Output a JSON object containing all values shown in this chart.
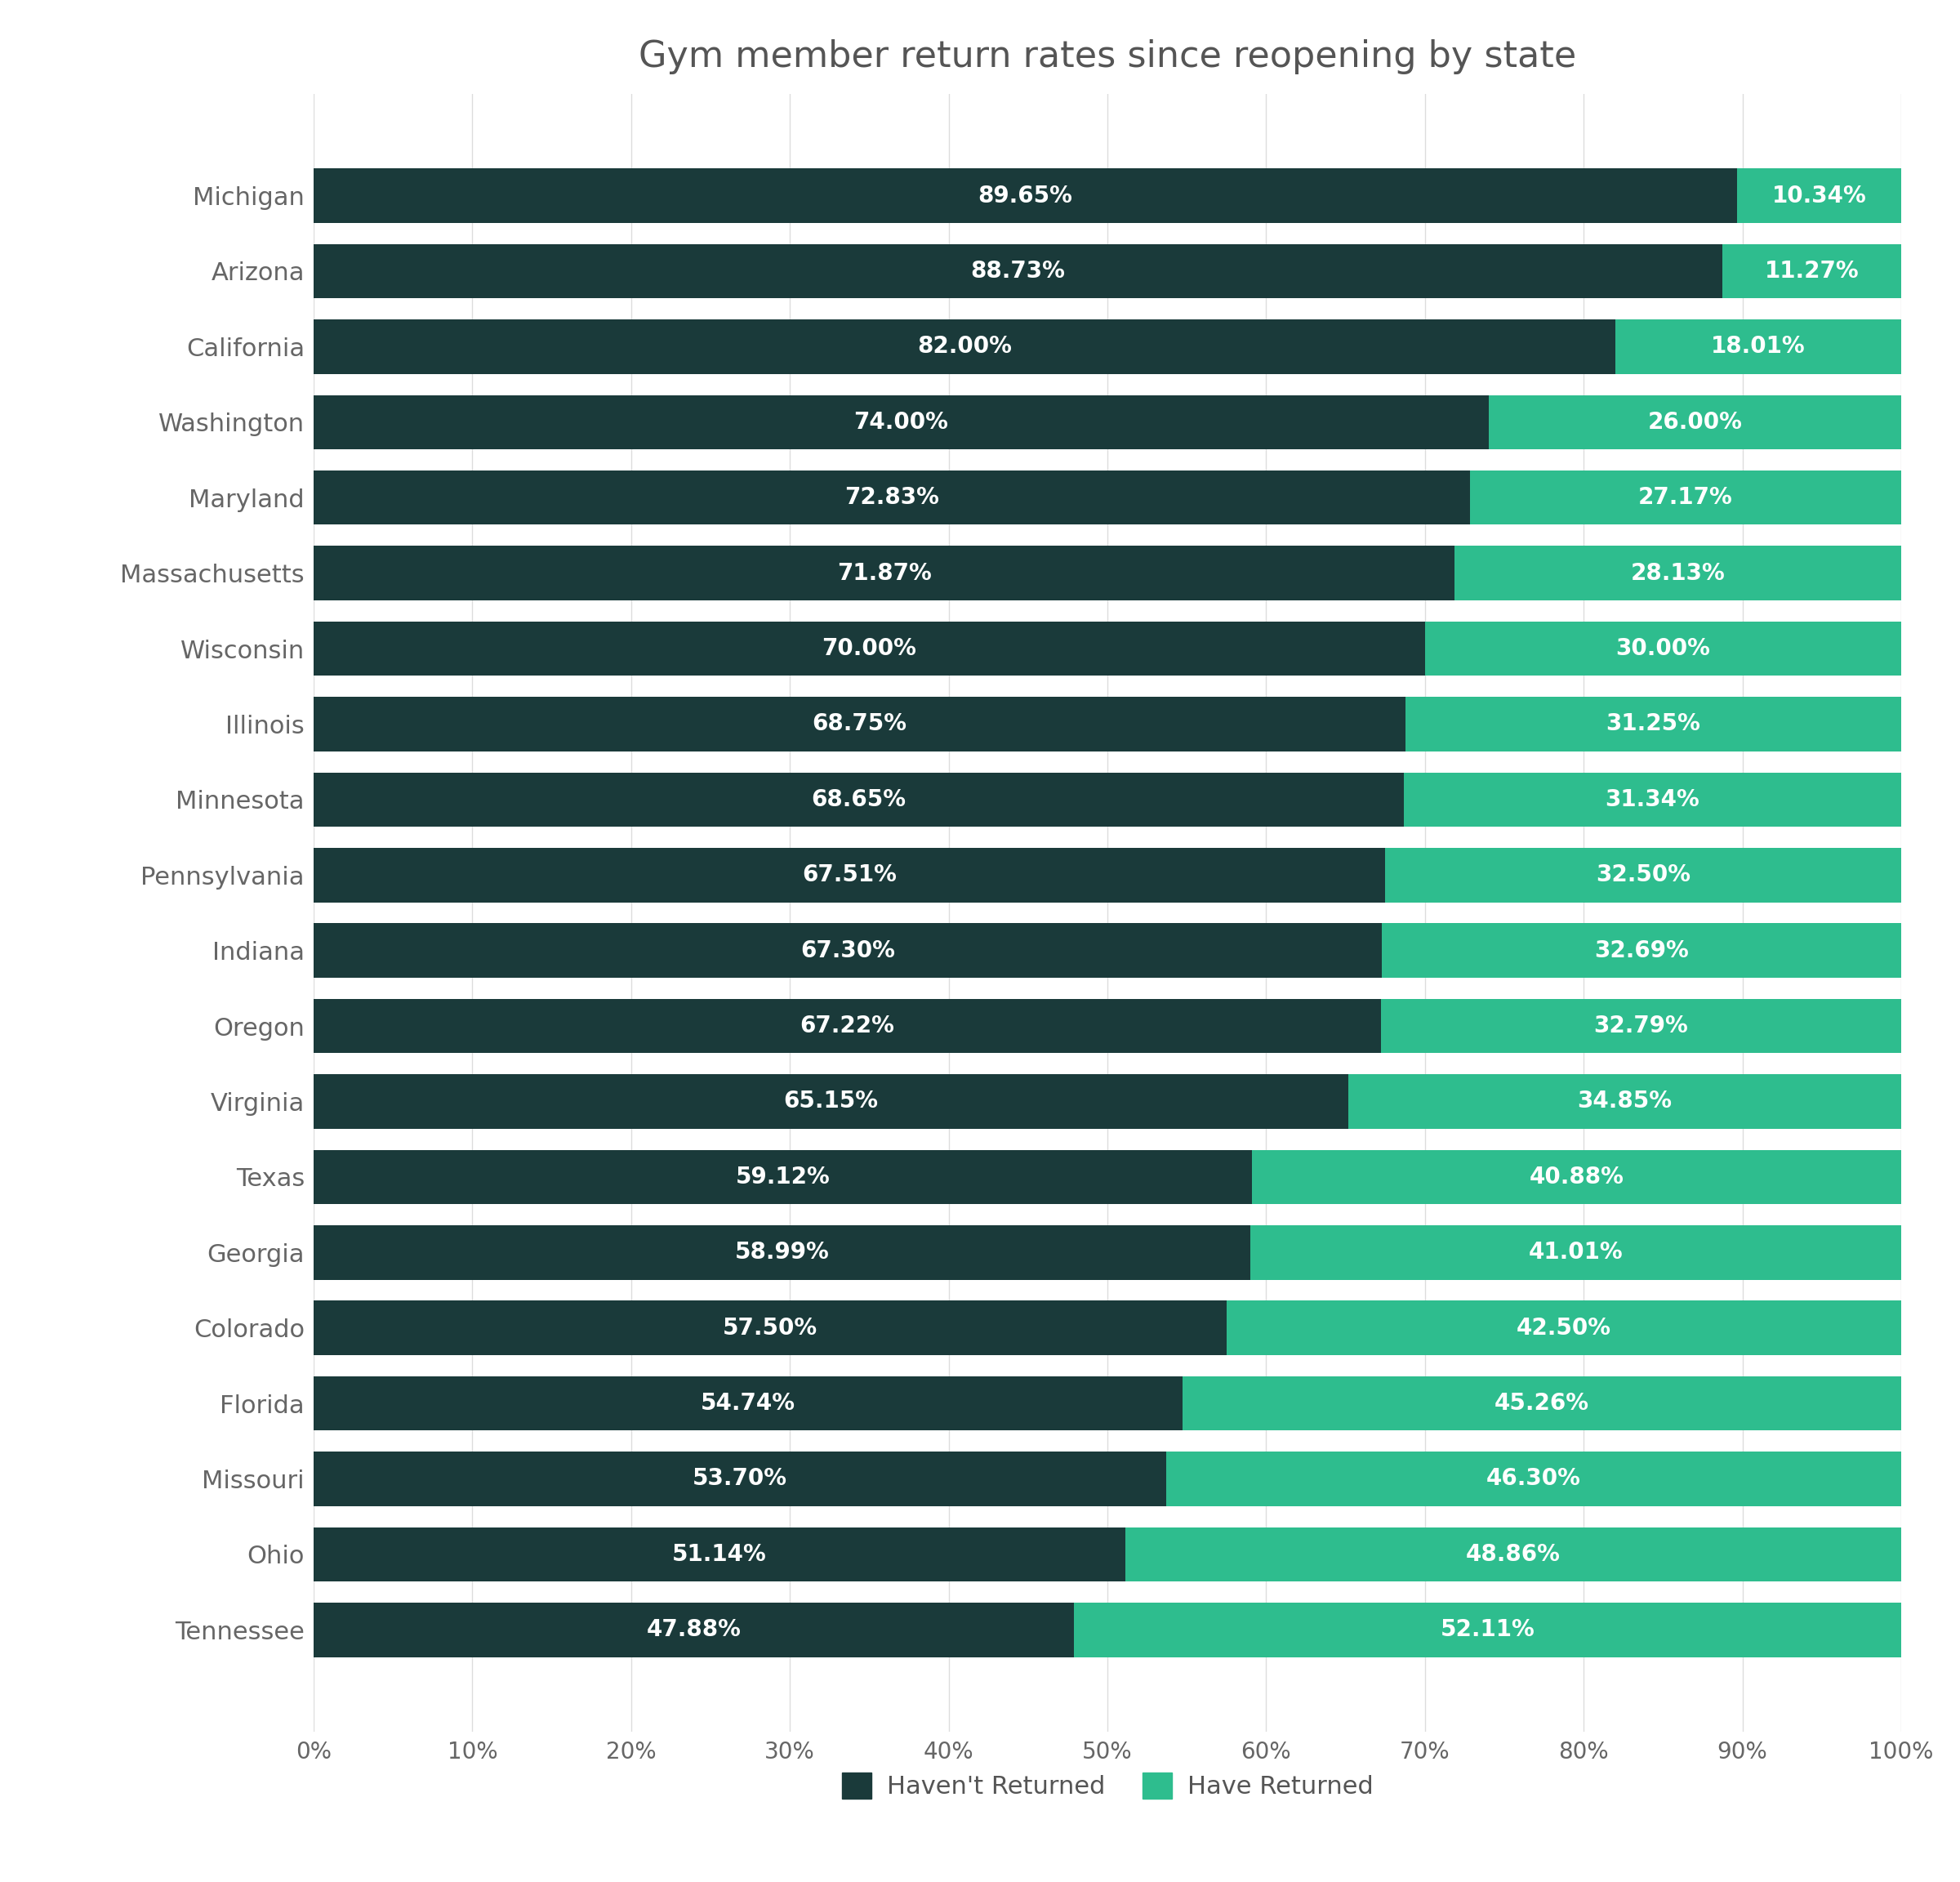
{
  "title": "Gym member return rates since reopening by state",
  "states": [
    "Michigan",
    "Arizona",
    "California",
    "Washington",
    "Maryland",
    "Massachusetts",
    "Wisconsin",
    "Illinois",
    "Minnesota",
    "Pennsylvania",
    "Indiana",
    "Oregon",
    "Virginia",
    "Texas",
    "Georgia",
    "Colorado",
    "Florida",
    "Missouri",
    "Ohio",
    "Tennessee"
  ],
  "not_returned": [
    89.65,
    88.73,
    82.0,
    74.0,
    72.83,
    71.87,
    70.0,
    68.75,
    68.65,
    67.51,
    67.3,
    67.22,
    65.15,
    59.12,
    58.99,
    57.5,
    54.74,
    53.7,
    51.14,
    47.88
  ],
  "returned": [
    10.34,
    11.27,
    18.01,
    26.0,
    27.17,
    28.13,
    30.0,
    31.25,
    31.34,
    32.5,
    32.69,
    32.79,
    34.85,
    40.88,
    41.01,
    42.5,
    45.26,
    46.3,
    48.86,
    52.11
  ],
  "not_returned_labels": [
    "89.65%",
    "88.73%",
    "82.00%",
    "74.00%",
    "72.83%",
    "71.87%",
    "70.00%",
    "68.75%",
    "68.65%",
    "67.51%",
    "67.30%",
    "67.22%",
    "65.15%",
    "59.12%",
    "58.99%",
    "57.50%",
    "54.74%",
    "53.70%",
    "51.14%",
    "47.88%"
  ],
  "returned_labels": [
    "10.34%",
    "11.27%",
    "18.01%",
    "26.00%",
    "27.17%",
    "28.13%",
    "30.00%",
    "31.25%",
    "31.34%",
    "32.50%",
    "32.69%",
    "32.79%",
    "34.85%",
    "40.88%",
    "41.01%",
    "42.50%",
    "45.26%",
    "46.30%",
    "48.86%",
    "52.11%"
  ],
  "color_not_returned": "#1a3a3a",
  "color_returned": "#2ebd8e",
  "background_color": "#ffffff",
  "title_fontsize": 32,
  "label_fontsize": 20,
  "tick_fontsize": 20,
  "state_fontsize": 22,
  "legend_fontsize": 22,
  "bar_height": 0.72
}
